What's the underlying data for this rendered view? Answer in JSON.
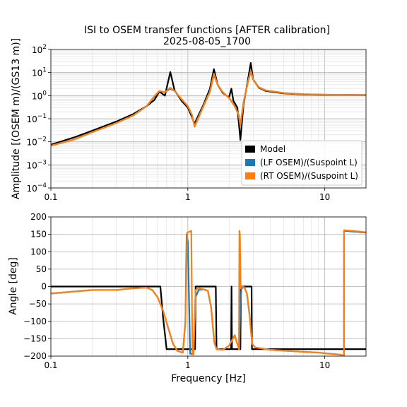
{
  "chart_data": {
    "type": "line",
    "title_line1": "ISI to OSEM transfer functions [AFTER calibration]",
    "title_line2": "2025-08-05_1700",
    "xlabel": "Frequency [Hz]",
    "x_scale": "log",
    "xlim": [
      0.1,
      20
    ],
    "x_tick_labels": [
      "0.1",
      "1",
      "10"
    ],
    "grid": true,
    "legend_position": "lower-right of top panel",
    "panels": [
      {
        "name": "amplitude",
        "ylabel": "Amplitude [(OSEM m)/(GS13 m)]",
        "y_scale": "log",
        "ylim": [
          0.0001,
          100
        ],
        "y_tick_labels": [
          {
            "m": "10",
            "e": "−4"
          },
          {
            "m": "10",
            "e": "−3"
          },
          {
            "m": "10",
            "e": "−2"
          },
          {
            "m": "10",
            "e": "−1"
          },
          {
            "m": "10",
            "e": "0"
          },
          {
            "m": "10",
            "e": "1"
          },
          {
            "m": "10",
            "e": "2"
          }
        ],
        "series": [
          {
            "name": "Model",
            "color": "#000000",
            "points": [
              [
                0.1,
                0.0075
              ],
              [
                0.15,
                0.016
              ],
              [
                0.2,
                0.03
              ],
              [
                0.3,
                0.075
              ],
              [
                0.4,
                0.16
              ],
              [
                0.5,
                0.35
              ],
              [
                0.57,
                0.65
              ],
              [
                0.62,
                1.5
              ],
              [
                0.68,
                1.0
              ],
              [
                0.745,
                10.5
              ],
              [
                0.8,
                1.7
              ],
              [
                0.9,
                0.6
              ],
              [
                1.0,
                0.3
              ],
              [
                1.07,
                0.12
              ],
              [
                1.12,
                0.06
              ],
              [
                1.18,
                0.12
              ],
              [
                1.3,
                0.4
              ],
              [
                1.45,
                2.0
              ],
              [
                1.55,
                14
              ],
              [
                1.65,
                3.0
              ],
              [
                1.8,
                1.3
              ],
              [
                2.0,
                0.85
              ],
              [
                2.08,
                2.0
              ],
              [
                2.15,
                0.6
              ],
              [
                2.3,
                0.3
              ],
              [
                2.42,
                0.012
              ],
              [
                2.55,
                0.4
              ],
              [
                2.75,
                5
              ],
              [
                2.88,
                26
              ],
              [
                3.0,
                5
              ],
              [
                3.3,
                2.2
              ],
              [
                3.7,
                1.6
              ],
              [
                5,
                1.25
              ],
              [
                7,
                1.12
              ],
              [
                10,
                1.08
              ],
              [
                20,
                1.05
              ]
            ]
          },
          {
            "name": "(LF OSEM)/(Suspoint L)",
            "color": "#1f77b4",
            "points": [
              [
                0.1,
                0.0068
              ],
              [
                0.15,
                0.013
              ],
              [
                0.2,
                0.026
              ],
              [
                0.3,
                0.065
              ],
              [
                0.4,
                0.14
              ],
              [
                0.5,
                0.35
              ],
              [
                0.57,
                0.9
              ],
              [
                0.62,
                1.6
              ],
              [
                0.68,
                1.4
              ],
              [
                0.745,
                2.0
              ],
              [
                0.8,
                1.6
              ],
              [
                0.9,
                0.7
              ],
              [
                1.0,
                0.35
              ],
              [
                1.07,
                0.15
              ],
              [
                1.12,
                0.05
              ],
              [
                1.18,
                0.1
              ],
              [
                1.3,
                0.35
              ],
              [
                1.45,
                1.5
              ],
              [
                1.55,
                8
              ],
              [
                1.65,
                3.0
              ],
              [
                1.8,
                1.4
              ],
              [
                2.0,
                0.8
              ],
              [
                2.2,
                0.35
              ],
              [
                2.35,
                0.15
              ],
              [
                2.42,
                0.05
              ],
              [
                2.55,
                0.5
              ],
              [
                2.75,
                4
              ],
              [
                2.88,
                11
              ],
              [
                3.0,
                5
              ],
              [
                3.3,
                2.3
              ],
              [
                3.7,
                1.7
              ],
              [
                5,
                1.3
              ],
              [
                7,
                1.15
              ],
              [
                10,
                1.1
              ],
              [
                20,
                1.07
              ]
            ]
          },
          {
            "name": "(RT OSEM)/(Suspoint L)",
            "color": "#ff7f0e",
            "points": [
              [
                0.1,
                0.0068
              ],
              [
                0.15,
                0.013
              ],
              [
                0.2,
                0.026
              ],
              [
                0.3,
                0.065
              ],
              [
                0.4,
                0.14
              ],
              [
                0.5,
                0.35
              ],
              [
                0.57,
                0.95
              ],
              [
                0.62,
                1.6
              ],
              [
                0.68,
                1.4
              ],
              [
                0.745,
                2.2
              ],
              [
                0.8,
                1.6
              ],
              [
                0.9,
                0.7
              ],
              [
                1.0,
                0.35
              ],
              [
                1.07,
                0.15
              ],
              [
                1.12,
                0.045
              ],
              [
                1.18,
                0.09
              ],
              [
                1.3,
                0.35
              ],
              [
                1.45,
                1.5
              ],
              [
                1.55,
                9
              ],
              [
                1.65,
                3.0
              ],
              [
                1.8,
                1.4
              ],
              [
                2.0,
                0.8
              ],
              [
                2.2,
                0.35
              ],
              [
                2.35,
                0.15
              ],
              [
                2.42,
                0.05
              ],
              [
                2.55,
                0.5
              ],
              [
                2.75,
                4
              ],
              [
                2.88,
                12
              ],
              [
                3.0,
                5
              ],
              [
                3.3,
                2.3
              ],
              [
                3.7,
                1.7
              ],
              [
                5,
                1.3
              ],
              [
                7,
                1.15
              ],
              [
                10,
                1.1
              ],
              [
                20,
                1.07
              ]
            ]
          }
        ]
      },
      {
        "name": "phase",
        "ylabel": "Angle [deg]",
        "y_scale": "linear",
        "ylim": [
          -200,
          200
        ],
        "y_tick_labels": [
          "200",
          "150",
          "100",
          "50",
          "0",
          "−50",
          "−100",
          "−150",
          "−200"
        ],
        "series": [
          {
            "name": "Model",
            "color": "#000000",
            "points": [
              [
                0.1,
                0
              ],
              [
                0.63,
                0
              ],
              [
                0.66,
                -90
              ],
              [
                0.7,
                -180
              ],
              [
                1.13,
                -180
              ],
              [
                1.14,
                0
              ],
              [
                1.6,
                0
              ],
              [
                1.62,
                -180
              ],
              [
                2.07,
                -180
              ],
              [
                2.085,
                0
              ],
              [
                2.1,
                -180
              ],
              [
                2.42,
                -180
              ],
              [
                2.44,
                0
              ],
              [
                2.92,
                0
              ],
              [
                2.94,
                -180
              ],
              [
                20,
                -180
              ]
            ]
          },
          {
            "name": "(LF OSEM)/(Suspoint L)",
            "color": "#1f77b4",
            "points": [
              [
                0.1,
                -20
              ],
              [
                0.2,
                -10
              ],
              [
                0.3,
                -10
              ],
              [
                0.4,
                -5
              ],
              [
                0.5,
                -3
              ],
              [
                0.55,
                -10
              ],
              [
                0.6,
                -30
              ],
              [
                0.66,
                -70
              ],
              [
                0.72,
                -120
              ],
              [
                0.78,
                -165
              ],
              [
                0.84,
                -185
              ],
              [
                0.92,
                -190
              ],
              [
                0.96,
                -100
              ],
              [
                0.98,
                150
              ],
              [
                1.0,
                130
              ],
              [
                1.04,
                -193
              ],
              [
                1.1,
                -195
              ],
              [
                1.14,
                -30
              ],
              [
                1.2,
                -10
              ],
              [
                1.3,
                -8
              ],
              [
                1.4,
                -12
              ],
              [
                1.48,
                -60
              ],
              [
                1.56,
                -160
              ],
              [
                1.62,
                -180
              ],
              [
                1.8,
                -182
              ],
              [
                2.0,
                -170
              ],
              [
                2.2,
                -140
              ],
              [
                2.3,
                -165
              ],
              [
                2.38,
                -180
              ],
              [
                2.42,
                -50
              ],
              [
                2.46,
                -5
              ],
              [
                2.58,
                -2
              ],
              [
                2.7,
                -20
              ],
              [
                2.82,
                -80
              ],
              [
                2.95,
                -165
              ],
              [
                3.1,
                -175
              ],
              [
                4,
                -182
              ],
              [
                6,
                -186
              ],
              [
                9,
                -190
              ],
              [
                13,
                -196
              ],
              [
                13.8,
                -198
              ],
              [
                13.82,
                160
              ],
              [
                16,
                158
              ],
              [
                20,
                155
              ]
            ]
          },
          {
            "name": "(RT OSEM)/(Suspoint L)",
            "color": "#ff7f0e",
            "points": [
              [
                0.1,
                -20
              ],
              [
                0.2,
                -10
              ],
              [
                0.3,
                -10
              ],
              [
                0.4,
                -5
              ],
              [
                0.5,
                -3
              ],
              [
                0.55,
                -10
              ],
              [
                0.6,
                -30
              ],
              [
                0.66,
                -70
              ],
              [
                0.72,
                -120
              ],
              [
                0.78,
                -165
              ],
              [
                0.84,
                -185
              ],
              [
                0.92,
                -190
              ],
              [
                0.96,
                -100
              ],
              [
                0.99,
                155
              ],
              [
                1.06,
                160
              ],
              [
                1.08,
                -195
              ],
              [
                1.1,
                -195
              ],
              [
                1.14,
                -10
              ],
              [
                1.2,
                -5
              ],
              [
                1.3,
                -8
              ],
              [
                1.4,
                -12
              ],
              [
                1.48,
                -60
              ],
              [
                1.56,
                -160
              ],
              [
                1.62,
                -180
              ],
              [
                1.8,
                -182
              ],
              [
                2.0,
                -170
              ],
              [
                2.2,
                -140
              ],
              [
                2.3,
                -165
              ],
              [
                2.36,
                -180
              ],
              [
                2.38,
                160
              ],
              [
                2.4,
                150
              ],
              [
                2.43,
                -5
              ],
              [
                2.5,
                0
              ],
              [
                2.58,
                -2
              ],
              [
                2.7,
                -20
              ],
              [
                2.82,
                -80
              ],
              [
                2.95,
                -165
              ],
              [
                3.1,
                -175
              ],
              [
                4,
                -182
              ],
              [
                6,
                -186
              ],
              [
                9,
                -190
              ],
              [
                13,
                -196
              ],
              [
                13.8,
                -198
              ],
              [
                13.82,
                162
              ],
              [
                16,
                160
              ],
              [
                20,
                156
              ]
            ]
          }
        ]
      }
    ]
  }
}
